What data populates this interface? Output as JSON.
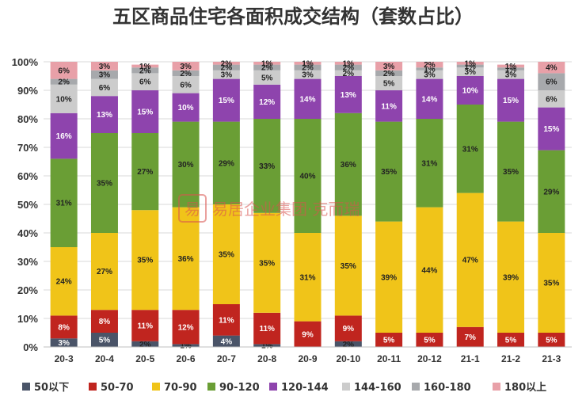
{
  "chart_data": {
    "type": "bar",
    "stacked": true,
    "title": "五区商品住宅各面积成交结构（套数占比）",
    "ylim": [
      0,
      100
    ],
    "y_ticks": [
      "0%",
      "10%",
      "20%",
      "30%",
      "40%",
      "50%",
      "60%",
      "70%",
      "80%",
      "90%",
      "100%"
    ],
    "grid": true,
    "legend_position": "bottom",
    "categories": [
      "20-3",
      "20-4",
      "20-5",
      "20-6",
      "20-7",
      "20-8",
      "20-9",
      "20-10",
      "20-11",
      "20-12",
      "21-1",
      "21-2",
      "21-3"
    ],
    "series": [
      {
        "name": "50以下",
        "color": "#4a5468",
        "values": [
          3,
          5,
          2,
          1,
          4,
          1,
          0,
          2,
          0,
          0,
          0,
          0,
          0
        ]
      },
      {
        "name": "50-70",
        "color": "#c0251f",
        "values": [
          8,
          8,
          11,
          12,
          11,
          11,
          9,
          9,
          5,
          5,
          7,
          5,
          5
        ]
      },
      {
        "name": "70-90",
        "color": "#f0c419",
        "values": [
          24,
          27,
          35,
          36,
          35,
          35,
          31,
          35,
          39,
          44,
          47,
          39,
          35
        ]
      },
      {
        "name": "90-120",
        "color": "#6a9e35",
        "values": [
          31,
          35,
          27,
          30,
          29,
          33,
          40,
          36,
          35,
          31,
          31,
          35,
          29
        ]
      },
      {
        "name": "120-144",
        "color": "#8e44ad",
        "values": [
          16,
          13,
          15,
          10,
          15,
          12,
          14,
          13,
          11,
          14,
          10,
          15,
          15
        ]
      },
      {
        "name": "144-160",
        "color": "#cccccc",
        "values": [
          10,
          6,
          6,
          6,
          3,
          5,
          3,
          2,
          5,
          3,
          3,
          3,
          6
        ]
      },
      {
        "name": "160-180",
        "color": "#a7a9ac",
        "values": [
          2,
          3,
          2,
          2,
          2,
          2,
          2,
          2,
          2,
          1,
          1,
          1,
          6
        ]
      },
      {
        "name": "180以上",
        "color": "#e8a0a8",
        "values": [
          6,
          3,
          1,
          3,
          2,
          1,
          1,
          1,
          3,
          2,
          1,
          1,
          4
        ]
      }
    ],
    "label_colors": {
      "50以下": "#ffffff",
      "50-70": "#ffffff",
      "70-90": "#222222",
      "90-120": "#222222",
      "120-144": "#ffffff",
      "144-160": "#222222",
      "160-180": "#222222",
      "180以上": "#222222"
    }
  },
  "watermark": {
    "text": "易居企业集团·克而瑞",
    "logo_char": "易"
  }
}
